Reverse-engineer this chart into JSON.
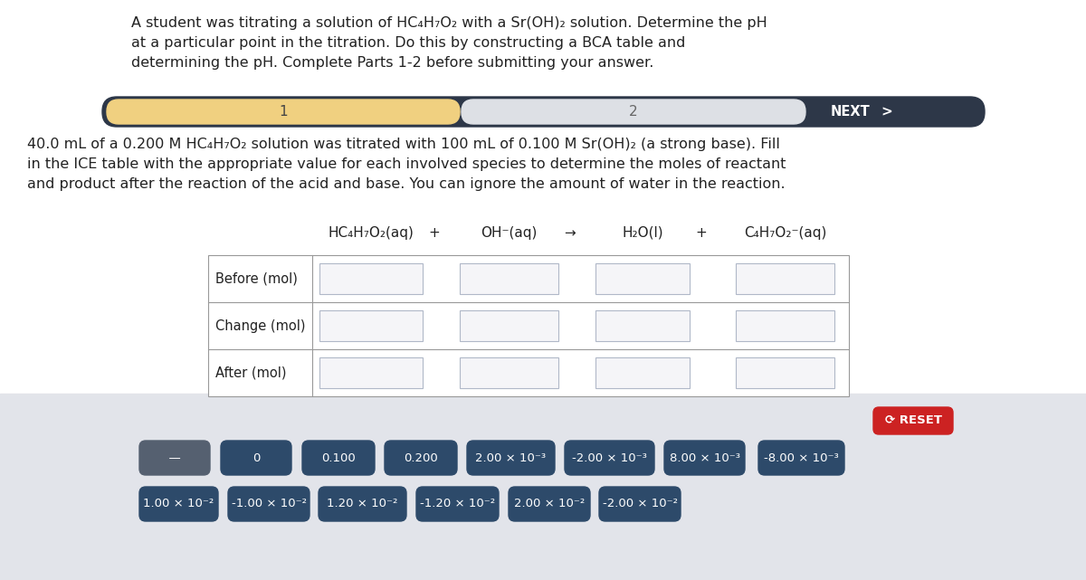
{
  "bg_color": "#e2e4ea",
  "white_bg": "#ffffff",
  "title_text_line1": "A student was titrating a solution of HC₄H₇O₂ with a Sr(OH)₂ solution. Determine the pH",
  "title_text_line2": "at a particular point in the titration. Do this by constructing a BCA table and",
  "title_text_line3": "determining the pH. Complete Parts 1-2 before submitting your answer.",
  "body_line1": "40.0 mL of a 0.200 M HC₄H₇O₂ solution was titrated with 100 mL of 0.100 M Sr(OH)₂ (a strong base). Fill",
  "body_line2": "in the ICE table with the appropriate value for each involved species to determine the moles of reactant",
  "body_line3": "and product after the reaction of the acid and base. You can ignore the amount of water in the reaction.",
  "tab_bar_dark": "#2d3748",
  "tab1_color": "#f0d080",
  "tab2_color": "#dde0e5",
  "tab1_label": "1",
  "tab2_label": "2",
  "next_label": "NEXT",
  "chevron": ">",
  "col_header1": "HC₄H₇O₂(aq)",
  "col_op1": "+",
  "col_header2": "OH⁻(aq)",
  "col_op2": "→",
  "col_header3": "H₂O(l)",
  "col_op3": "+",
  "col_header4": "C₄H₇O₂⁻(aq)",
  "row_labels": [
    "Before (mol)",
    "Change (mol)",
    "After (mol)"
  ],
  "btn_row1": [
    "  —  ",
    "0",
    "0.100",
    "0.200",
    "2.00 × 10⁻³",
    "-2.00 × 10⁻³",
    "8.00 × 10⁻³",
    "-8.00 × 10⁻³"
  ],
  "btn_row2": [
    "1.00 × 10⁻²",
    "-1.00 × 10⁻²",
    "1.20 × 10⁻²",
    "-1.20 × 10⁻²",
    "2.00 × 10⁻²",
    "-2.00 × 10⁻²"
  ],
  "btn_dark_color": "#2d4a6a",
  "btn_gray_color": "#556070",
  "reset_color": "#cc2222",
  "reset_label": "⟳ RESET",
  "fig_width": 12.0,
  "fig_height": 6.41,
  "dpi": 100
}
